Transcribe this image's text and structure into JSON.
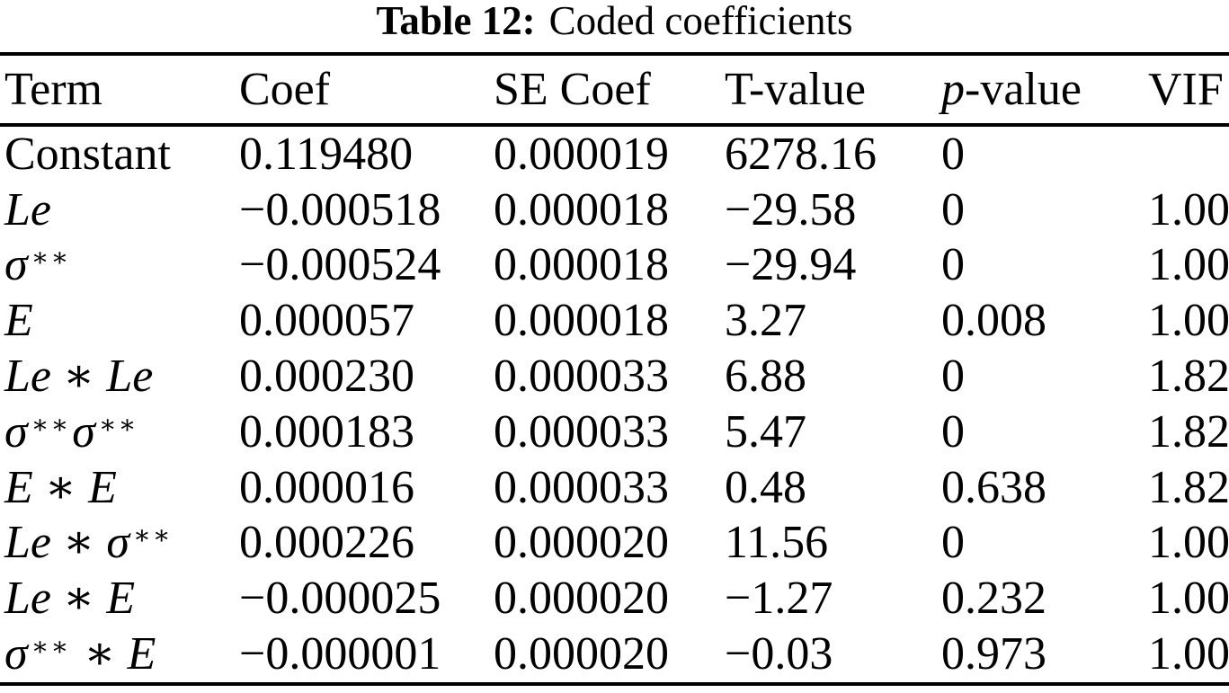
{
  "caption": {
    "label": "Table 12:",
    "text": "Coded coefficients"
  },
  "colors": {
    "text": "#000000",
    "background": "#ffffff",
    "rule": "#000000"
  },
  "table": {
    "columns": [
      {
        "key": "term",
        "label": [
          {
            "t": "Term"
          }
        ]
      },
      {
        "key": "coef",
        "label": [
          {
            "t": "Coef"
          }
        ]
      },
      {
        "key": "se",
        "label": [
          {
            "t": "SE Coef"
          }
        ]
      },
      {
        "key": "t",
        "label": [
          {
            "t": "T-value"
          }
        ]
      },
      {
        "key": "p",
        "label": [
          {
            "t": "p",
            "i": true
          },
          {
            "t": "-value"
          }
        ]
      },
      {
        "key": "vif",
        "label": [
          {
            "t": "VIF"
          }
        ]
      }
    ],
    "rows": [
      {
        "term": [
          {
            "t": "Constant"
          }
        ],
        "coef": "0.119480",
        "se": "0.000019",
        "t": "6278.16",
        "p": "0",
        "vif": ""
      },
      {
        "term": [
          {
            "t": "Le",
            "i": true
          }
        ],
        "coef": "−0.000518",
        "se": "0.000018",
        "t": "−29.58",
        "p": "0",
        "vif": "1.00"
      },
      {
        "term": [
          {
            "t": "σ",
            "i": true
          },
          {
            "t": "∗∗",
            "sup": true
          }
        ],
        "coef": "−0.000524",
        "se": "0.000018",
        "t": "−29.94",
        "p": "0",
        "vif": "1.00"
      },
      {
        "term": [
          {
            "t": "E",
            "i": true
          }
        ],
        "coef": "0.000057",
        "se": "0.000018",
        "t": "3.27",
        "p": "0.008",
        "vif": "1.00"
      },
      {
        "term": [
          {
            "t": "Le",
            "i": true
          },
          {
            "t": " ∗ "
          },
          {
            "t": "Le",
            "i": true
          }
        ],
        "coef": "0.000230",
        "se": "0.000033",
        "t": "6.88",
        "p": "0",
        "vif": "1.82"
      },
      {
        "term": [
          {
            "t": "σ",
            "i": true
          },
          {
            "t": "∗∗",
            "sup": true
          },
          {
            "t": "σ",
            "i": true
          },
          {
            "t": "∗∗",
            "sup": true
          }
        ],
        "coef": "0.000183",
        "se": "0.000033",
        "t": "5.47",
        "p": "0",
        "vif": "1.82"
      },
      {
        "term": [
          {
            "t": "E",
            "i": true
          },
          {
            "t": " ∗ "
          },
          {
            "t": "E",
            "i": true
          }
        ],
        "coef": "0.000016",
        "se": "0.000033",
        "t": "0.48",
        "p": "0.638",
        "vif": "1.82"
      },
      {
        "term": [
          {
            "t": "Le",
            "i": true
          },
          {
            "t": " ∗ "
          },
          {
            "t": "σ",
            "i": true
          },
          {
            "t": "∗∗",
            "sup": true
          }
        ],
        "coef": "0.000226",
        "se": "0.000020",
        "t": "11.56",
        "p": "0",
        "vif": "1.00"
      },
      {
        "term": [
          {
            "t": "Le",
            "i": true
          },
          {
            "t": " ∗ "
          },
          {
            "t": "E",
            "i": true
          }
        ],
        "coef": "−0.000025",
        "se": "0.000020",
        "t": "−1.27",
        "p": "0.232",
        "vif": "1.00"
      },
      {
        "term": [
          {
            "t": "σ",
            "i": true
          },
          {
            "t": "∗∗",
            "sup": true
          },
          {
            "t": " ∗ "
          },
          {
            "t": "E",
            "i": true
          }
        ],
        "coef": "−0.000001",
        "se": "0.000020",
        "t": "−0.03",
        "p": "0.973",
        "vif": "1.00"
      }
    ]
  }
}
